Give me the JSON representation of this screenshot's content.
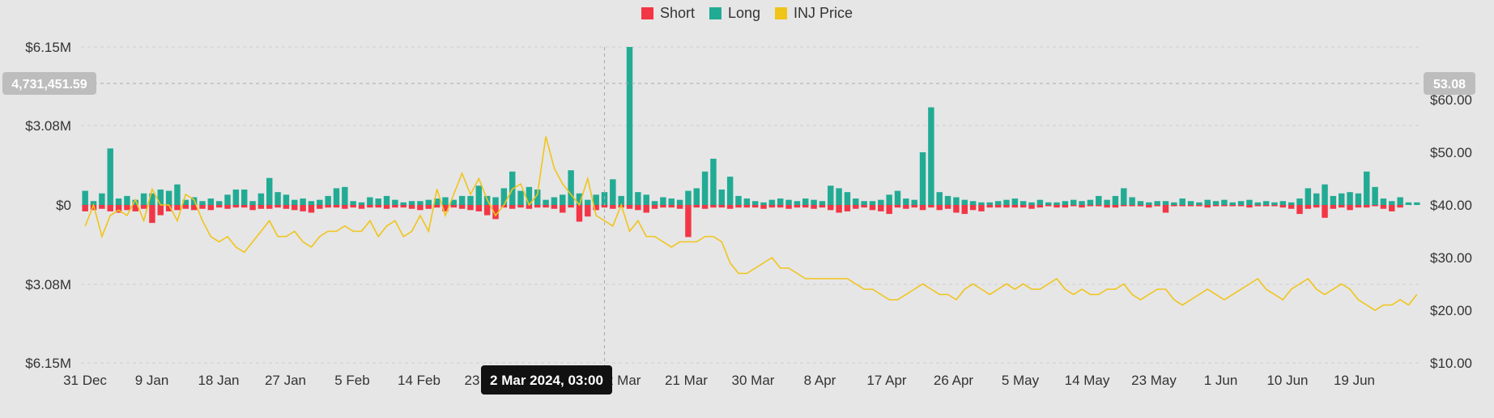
{
  "chart_data": {
    "type": "bar",
    "legend": [
      {
        "name": "Short",
        "color": "#f23645"
      },
      {
        "name": "Long",
        "color": "#22ab94"
      },
      {
        "name": "INJ Price",
        "color": "#f0c419"
      }
    ],
    "y_left_ticks": [
      "$6.15M",
      "$3.08M",
      "$0",
      "$3.08M",
      "$6.15M"
    ],
    "y_left_lim": [
      -6150000,
      6150000
    ],
    "y_right_ticks": [
      "$60.00",
      "$50.00",
      "$40.00",
      "$30.00",
      "$20.00",
      "$10.00"
    ],
    "y_right_lim": [
      0,
      60
    ],
    "x_ticks": [
      "31 Dec",
      "9 Jan",
      "18 Jan",
      "27 Jan",
      "5 Feb",
      "14 Feb",
      "23 Feb",
      "2 Mar",
      "12 Mar",
      "21 Mar",
      "30 Mar",
      "8 Apr",
      "17 Apr",
      "26 Apr",
      "5 May",
      "14 May",
      "23 May",
      "1 Jun",
      "10 Jun",
      "19 Jun"
    ],
    "grid": true,
    "crosshair": {
      "left_value": "4,731,451.59",
      "right_value": "53.08",
      "date_label": "2 Mar 2024, 03:00",
      "x_index": 62
    },
    "long_values": [
      0.55,
      0.15,
      0.45,
      2.2,
      0.25,
      0.35,
      0.2,
      0.45,
      0.45,
      0.6,
      0.55,
      0.8,
      0.2,
      0.3,
      0.15,
      0.25,
      0.15,
      0.4,
      0.6,
      0.6,
      0.15,
      0.45,
      1.05,
      0.5,
      0.4,
      0.2,
      0.25,
      0.15,
      0.2,
      0.35,
      0.65,
      0.7,
      0.15,
      0.1,
      0.3,
      0.25,
      0.35,
      0.2,
      0.1,
      0.15,
      0.15,
      0.2,
      0.25,
      0.3,
      0.2,
      0.35,
      0.35,
      0.75,
      0.35,
      0.3,
      0.65,
      1.3,
      0.55,
      0.7,
      0.6,
      0.2,
      0.3,
      0.4,
      1.35,
      0.45,
      0.2,
      0.4,
      0.5,
      1.0,
      0.35,
      6.15,
      0.5,
      0.4,
      0.15,
      0.3,
      0.25,
      0.2,
      0.55,
      0.65,
      1.3,
      1.8,
      0.6,
      1.1,
      0.35,
      0.25,
      0.15,
      0.1,
      0.2,
      0.25,
      0.2,
      0.15,
      0.25,
      0.2,
      0.15,
      0.75,
      0.65,
      0.5,
      0.25,
      0.15,
      0.15,
      0.2,
      0.4,
      0.55,
      0.25,
      0.2,
      2.05,
      3.8,
      0.5,
      0.35,
      0.3,
      0.2,
      0.15,
      0.1,
      0.1,
      0.15,
      0.2,
      0.25,
      0.15,
      0.1,
      0.2,
      0.1,
      0.1,
      0.15,
      0.2,
      0.15,
      0.2,
      0.35,
      0.2,
      0.35,
      0.65,
      0.3,
      0.15,
      0.1,
      0.15,
      0.15,
      0.1,
      0.25,
      0.15,
      0.1,
      0.2,
      0.15,
      0.2,
      0.1,
      0.15,
      0.2,
      0.1,
      0.15,
      0.1,
      0.15,
      0.1,
      0.25,
      0.65,
      0.45,
      0.8,
      0.35,
      0.45,
      0.5,
      0.45,
      1.3,
      0.7,
      0.25,
      0.15,
      0.3,
      0.1,
      0.1
    ],
    "short_values": [
      0.25,
      0.2,
      0.15,
      0.25,
      0.3,
      0.2,
      0.25,
      0.15,
      0.7,
      0.4,
      0.25,
      0.2,
      0.15,
      0.2,
      0.15,
      0.2,
      0.1,
      0.15,
      0.1,
      0.1,
      0.2,
      0.15,
      0.15,
      0.1,
      0.15,
      0.2,
      0.25,
      0.3,
      0.15,
      0.1,
      0.1,
      0.15,
      0.1,
      0.15,
      0.1,
      0.1,
      0.15,
      0.1,
      0.1,
      0.15,
      0.2,
      0.15,
      0.1,
      0.25,
      0.1,
      0.15,
      0.2,
      0.25,
      0.4,
      0.55,
      0.1,
      0.15,
      0.1,
      0.15,
      0.1,
      0.1,
      0.15,
      0.3,
      0.1,
      0.65,
      0.45,
      0.2,
      0.1,
      0.15,
      0.1,
      0.15,
      0.2,
      0.3,
      0.15,
      0.1,
      0.1,
      0.15,
      1.25,
      0.1,
      0.15,
      0.1,
      0.1,
      0.15,
      0.1,
      0.1,
      0.1,
      0.15,
      0.1,
      0.1,
      0.15,
      0.1,
      0.1,
      0.15,
      0.1,
      0.2,
      0.3,
      0.25,
      0.15,
      0.1,
      0.2,
      0.25,
      0.35,
      0.1,
      0.15,
      0.1,
      0.2,
      0.1,
      0.2,
      0.15,
      0.3,
      0.35,
      0.2,
      0.25,
      0.1,
      0.1,
      0.1,
      0.1,
      0.1,
      0.15,
      0.1,
      0.05,
      0.1,
      0.1,
      0.05,
      0.1,
      0.05,
      0.05,
      0.1,
      0.1,
      0.05,
      0.05,
      0.05,
      0.1,
      0.05,
      0.3,
      0.05,
      0.05,
      0.05,
      0.05,
      0.1,
      0.05,
      0.05,
      0.05,
      0.05,
      0.1,
      0.05,
      0.05,
      0.05,
      0.1,
      0.15,
      0.35,
      0.15,
      0.1,
      0.5,
      0.15,
      0.1,
      0.2,
      0.1,
      0.1,
      0.05,
      0.15,
      0.25,
      0.1
    ],
    "price_values": [
      36,
      40,
      34,
      38,
      39,
      38,
      41,
      37,
      43,
      40,
      40,
      37,
      42,
      41,
      37,
      34,
      33,
      34,
      32,
      31,
      33,
      35,
      37,
      34,
      34,
      35,
      33,
      32,
      34,
      35,
      35,
      36,
      35,
      35,
      37,
      34,
      36,
      37,
      34,
      35,
      38,
      35,
      43,
      38,
      42,
      46,
      42,
      45,
      41,
      38,
      40,
      43,
      44,
      40,
      42,
      53,
      47,
      44,
      42,
      40,
      45,
      38,
      37,
      36,
      40,
      35,
      37,
      34,
      34,
      33,
      32,
      33,
      33,
      33,
      34,
      34,
      33,
      29,
      27,
      27,
      28,
      29,
      30,
      28,
      28,
      27,
      26,
      26,
      26,
      26,
      26,
      26,
      25,
      24,
      24,
      23,
      22,
      22,
      23,
      24,
      25,
      24,
      23,
      23,
      22,
      24,
      25,
      24,
      23,
      24,
      25,
      24,
      25,
      24,
      24,
      25,
      26,
      24,
      23,
      24,
      23,
      23,
      24,
      24,
      25,
      23,
      22,
      23,
      24,
      24,
      22,
      21,
      22,
      23,
      24,
      23,
      22,
      23,
      24,
      25,
      26,
      24,
      23,
      22,
      24,
      25,
      26,
      24,
      23,
      24,
      25,
      24,
      22,
      21,
      20,
      21,
      21,
      22,
      21,
      23
    ]
  }
}
